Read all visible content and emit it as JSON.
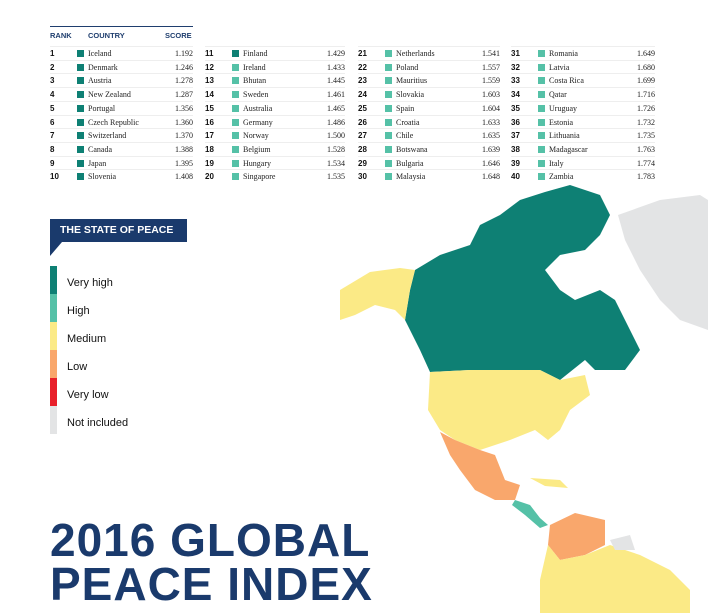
{
  "table": {
    "headers": {
      "rank": "RANK",
      "country": "COUNTRY",
      "score": "SCORE"
    },
    "rows": [
      {
        "rank": "1",
        "country": "Iceland",
        "score": "1.192",
        "level": "very_high"
      },
      {
        "rank": "2",
        "country": "Denmark",
        "score": "1.246",
        "level": "very_high"
      },
      {
        "rank": "3",
        "country": "Austria",
        "score": "1.278",
        "level": "very_high"
      },
      {
        "rank": "4",
        "country": "New Zealand",
        "score": "1.287",
        "level": "very_high"
      },
      {
        "rank": "5",
        "country": "Portugal",
        "score": "1.356",
        "level": "very_high"
      },
      {
        "rank": "6",
        "country": "Czech Republic",
        "score": "1.360",
        "level": "very_high"
      },
      {
        "rank": "7",
        "country": "Switzerland",
        "score": "1.370",
        "level": "very_high"
      },
      {
        "rank": "8",
        "country": "Canada",
        "score": "1.388",
        "level": "very_high"
      },
      {
        "rank": "9",
        "country": "Japan",
        "score": "1.395",
        "level": "very_high"
      },
      {
        "rank": "10",
        "country": "Slovenia",
        "score": "1.408",
        "level": "very_high"
      },
      {
        "rank": "11",
        "country": "Finland",
        "score": "1.429",
        "level": "very_high"
      },
      {
        "rank": "12",
        "country": "Ireland",
        "score": "1.433",
        "level": "high"
      },
      {
        "rank": "13",
        "country": "Bhutan",
        "score": "1.445",
        "level": "high"
      },
      {
        "rank": "14",
        "country": "Sweden",
        "score": "1.461",
        "level": "high"
      },
      {
        "rank": "15",
        "country": "Australia",
        "score": "1.465",
        "level": "high"
      },
      {
        "rank": "16",
        "country": "Germany",
        "score": "1.486",
        "level": "high"
      },
      {
        "rank": "17",
        "country": "Norway",
        "score": "1.500",
        "level": "high"
      },
      {
        "rank": "18",
        "country": "Belgium",
        "score": "1.528",
        "level": "high"
      },
      {
        "rank": "19",
        "country": "Hungary",
        "score": "1.534",
        "level": "high"
      },
      {
        "rank": "20",
        "country": "Singapore",
        "score": "1.535",
        "level": "high"
      },
      {
        "rank": "21",
        "country": "Netherlands",
        "score": "1.541",
        "level": "high"
      },
      {
        "rank": "22",
        "country": "Poland",
        "score": "1.557",
        "level": "high"
      },
      {
        "rank": "23",
        "country": "Mauritius",
        "score": "1.559",
        "level": "high"
      },
      {
        "rank": "24",
        "country": "Slovakia",
        "score": "1.603",
        "level": "high"
      },
      {
        "rank": "25",
        "country": "Spain",
        "score": "1.604",
        "level": "high"
      },
      {
        "rank": "26",
        "country": "Croatia",
        "score": "1.633",
        "level": "high"
      },
      {
        "rank": "27",
        "country": "Chile",
        "score": "1.635",
        "level": "high"
      },
      {
        "rank": "28",
        "country": "Botswana",
        "score": "1.639",
        "level": "high"
      },
      {
        "rank": "29",
        "country": "Bulgaria",
        "score": "1.646",
        "level": "high"
      },
      {
        "rank": "30",
        "country": "Malaysia",
        "score": "1.648",
        "level": "high"
      },
      {
        "rank": "31",
        "country": "Romania",
        "score": "1.649",
        "level": "high"
      },
      {
        "rank": "32",
        "country": "Latvia",
        "score": "1.680",
        "level": "high"
      },
      {
        "rank": "33",
        "country": "Costa Rica",
        "score": "1.699",
        "level": "high"
      },
      {
        "rank": "34",
        "country": "Qatar",
        "score": "1.716",
        "level": "high"
      },
      {
        "rank": "35",
        "country": "Uruguay",
        "score": "1.726",
        "level": "high"
      },
      {
        "rank": "36",
        "country": "Estonia",
        "score": "1.732",
        "level": "high"
      },
      {
        "rank": "37",
        "country": "Lithuania",
        "score": "1.735",
        "level": "high"
      },
      {
        "rank": "38",
        "country": "Madagascar",
        "score": "1.763",
        "level": "high"
      },
      {
        "rank": "39",
        "country": "Italy",
        "score": "1.774",
        "level": "high"
      },
      {
        "rank": "40",
        "country": "Zambia",
        "score": "1.783",
        "level": "high"
      }
    ]
  },
  "legend": {
    "title": "THE STATE OF PEACE",
    "items": [
      {
        "key": "very_high",
        "label": "Very high",
        "color": "#0e8074"
      },
      {
        "key": "high",
        "label": "High",
        "color": "#55c1a7"
      },
      {
        "key": "medium",
        "label": "Medium",
        "color": "#fbea86"
      },
      {
        "key": "low",
        "label": "Low",
        "color": "#f9a76c"
      },
      {
        "key": "very_low",
        "label": "Very low",
        "color": "#e8202a"
      },
      {
        "key": "not_included",
        "label": "Not included",
        "color": "#e3e4e5"
      }
    ]
  },
  "title": {
    "line1": "2016 GLOBAL",
    "line2": "PEACE INDEX"
  }
}
